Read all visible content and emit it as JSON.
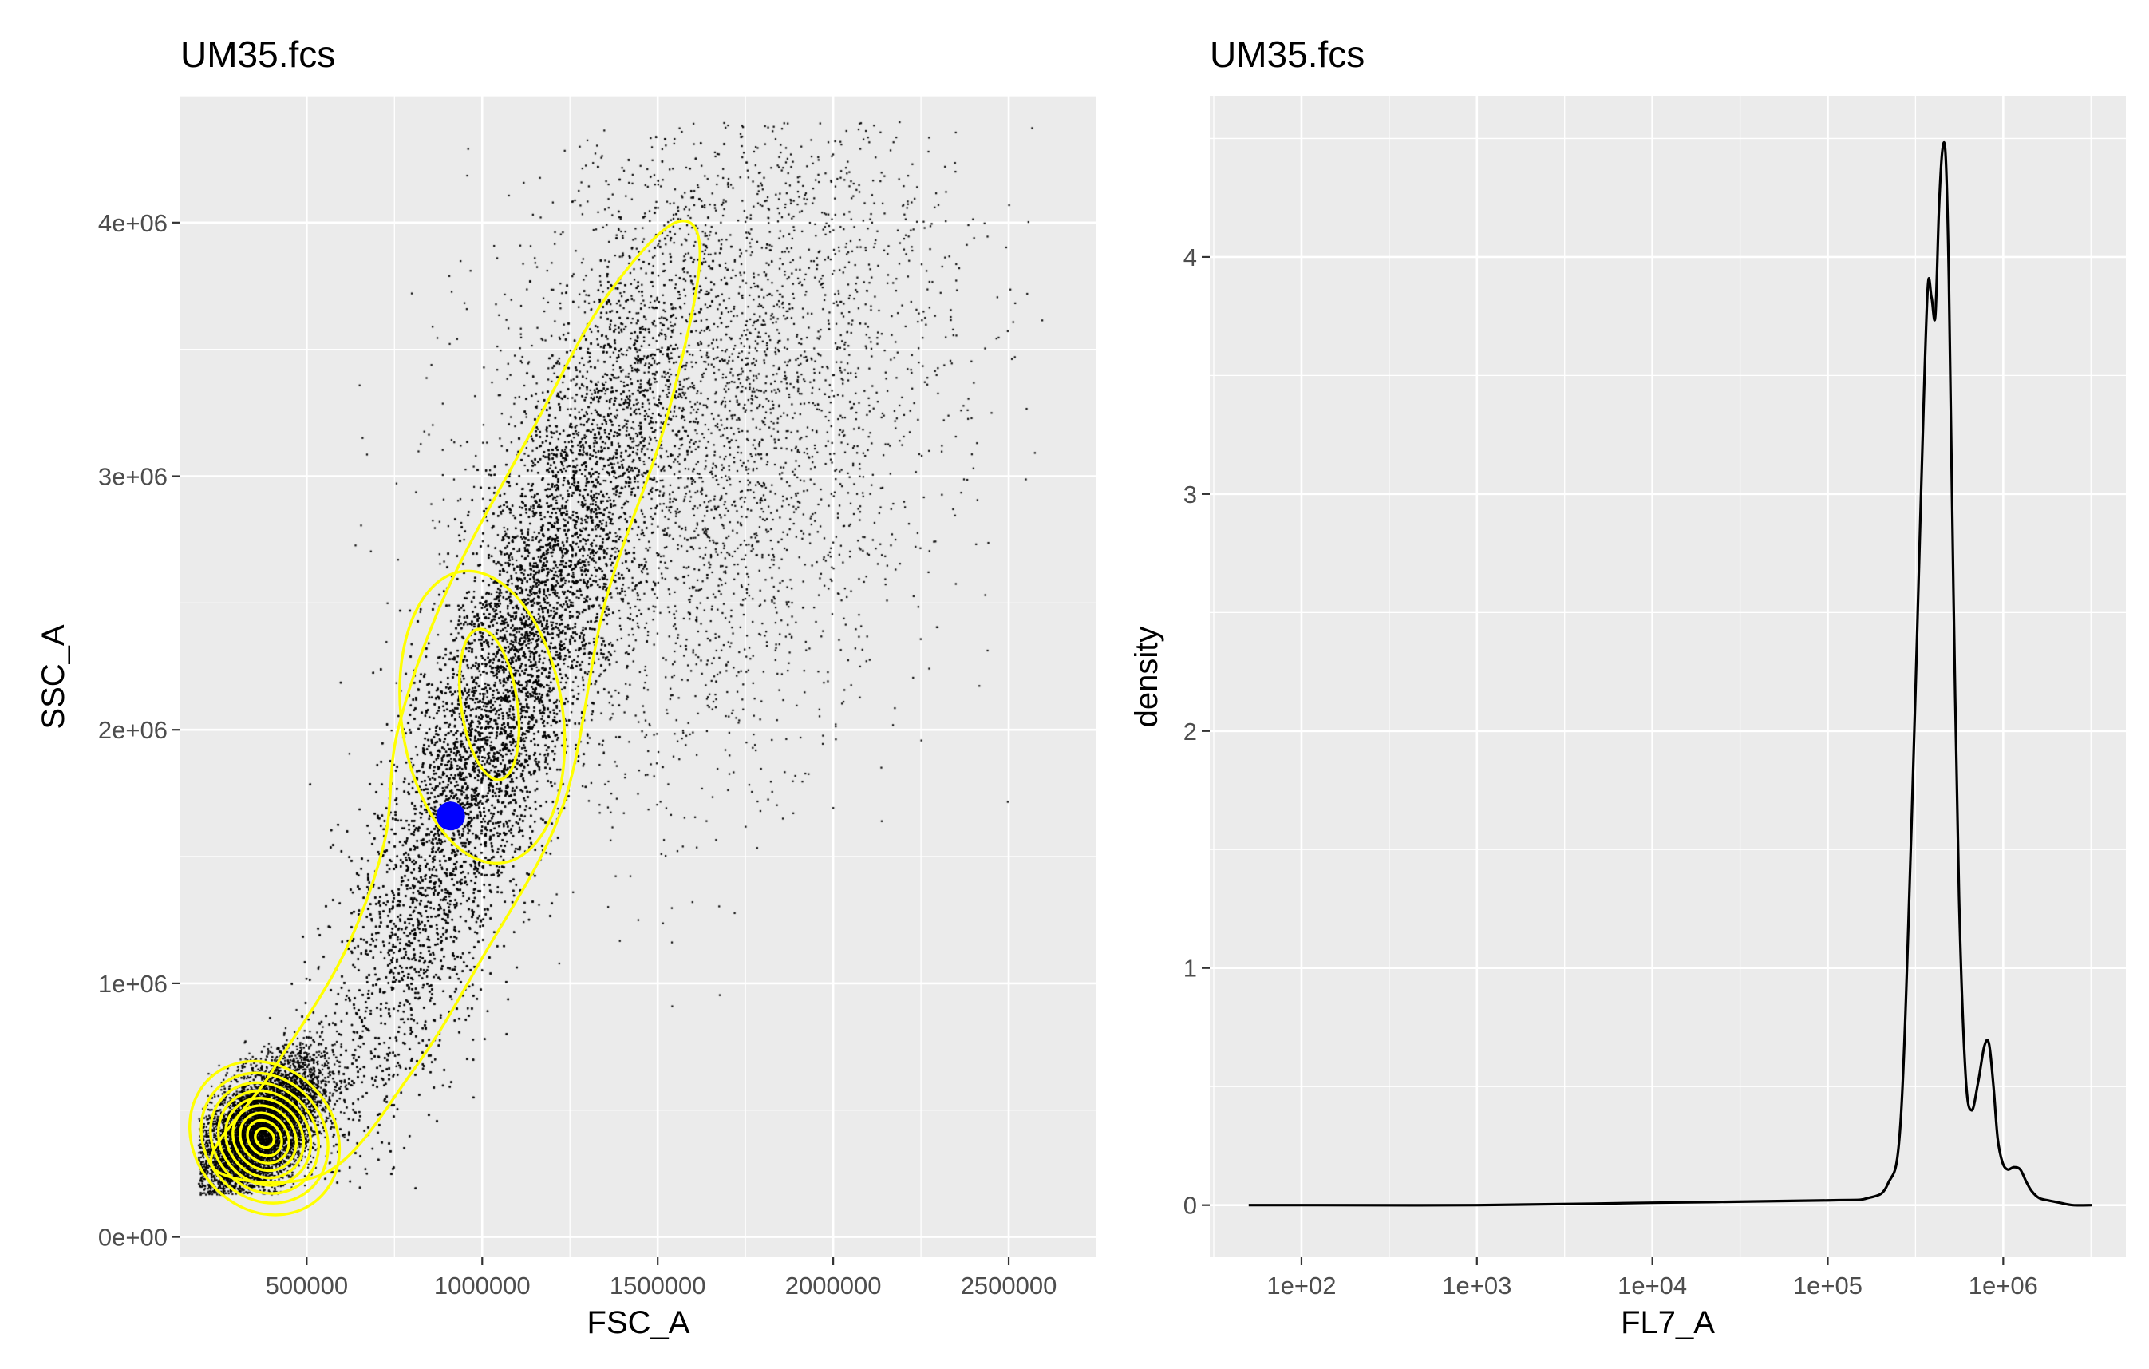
{
  "chart_data": [
    {
      "type": "scatter",
      "title": "UM35.fcs",
      "xlabel": "FSC_A",
      "ylabel": "SSC_A",
      "xlim": [
        140000,
        2750000
      ],
      "ylim": [
        -80000,
        4500000
      ],
      "x_ticks": [
        500000,
        1000000,
        1500000,
        2000000,
        2500000
      ],
      "x_tick_labels": [
        "500000",
        "1000000",
        "1500000",
        "2000000",
        "2500000"
      ],
      "y_ticks": [
        0,
        1000000,
        2000000,
        3000000,
        4000000
      ],
      "y_tick_labels": [
        "0e+00",
        "1e+06",
        "2e+06",
        "3e+06",
        "4e+06"
      ],
      "grid": true,
      "legend": "none",
      "point_color": "#000000",
      "contour_color": "#ffff00",
      "populations": [
        {
          "name": "",
          "n": 9000,
          "x_mean": 360000,
          "y_mean": 420000,
          "x_sd": 90000,
          "y_sd": 140000,
          "corr": 0.55
        },
        {
          "name": "",
          "n": 20000,
          "x_mean": 1050000,
          "y_mean": 2100000,
          "x_sd": 230000,
          "y_sd": 780000,
          "corr": 0.86
        },
        {
          "name": "",
          "n": 4000,
          "x_mean": 1650000,
          "y_mean": 3200000,
          "x_sd": 330000,
          "y_sd": 700000,
          "corr": 0.3
        }
      ],
      "contours": [
        {
          "center": [
            380000,
            390000
          ],
          "radii": [
            [
              25000,
              40000
            ],
            [
              45000,
              75000
            ],
            [
              65000,
              105000
            ],
            [
              85000,
              135000
            ],
            [
              105000,
              165000
            ],
            [
              125000,
              195000
            ],
            [
              145000,
              230000
            ],
            [
              170000,
              270000
            ],
            [
              200000,
              320000
            ]
          ],
          "angle": 40
        },
        {
          "center": [
            1020000,
            2100000
          ],
          "radii": [
            [
              80000,
              300000
            ]
          ],
          "angle": 8
        },
        {
          "center": [
            1000000,
            2050000
          ],
          "radii": [
            [
              230000,
              580000
            ]
          ],
          "angle": 8
        }
      ],
      "outer_contour": [
        [
          230000,
          280000
        ],
        [
          400000,
          650000
        ],
        [
          600000,
          1100000
        ],
        [
          720000,
          1550000
        ],
        [
          760000,
          2000000
        ],
        [
          900000,
          2550000
        ],
        [
          1150000,
          3200000
        ],
        [
          1350000,
          3700000
        ],
        [
          1550000,
          4000000
        ],
        [
          1620000,
          3850000
        ],
        [
          1520000,
          3200000
        ],
        [
          1350000,
          2500000
        ],
        [
          1230000,
          1700000
        ],
        [
          1000000,
          1100000
        ],
        [
          800000,
          650000
        ],
        [
          550000,
          250000
        ]
      ],
      "highlight_point": {
        "x": 910000,
        "y": 1660000,
        "color": "#0000ff"
      }
    },
    {
      "type": "line",
      "title": "UM35.fcs",
      "xlabel": "FL7_A",
      "ylabel": "density",
      "x_scale": "log10",
      "xlim": [
        30,
        5000000
      ],
      "ylim": [
        -0.22,
        4.68
      ],
      "x_ticks": [
        100,
        1000,
        10000,
        100000,
        1000000
      ],
      "x_tick_labels": [
        "1e+02",
        "1e+03",
        "1e+04",
        "1e+05",
        "1e+06"
      ],
      "y_ticks": [
        0,
        1,
        2,
        3,
        4
      ],
      "y_tick_labels": [
        "0",
        "1",
        "2",
        "3",
        "4"
      ],
      "grid": true,
      "legend": "none",
      "line_color": "#000000",
      "x": [
        50,
        100,
        1000,
        10000,
        100000,
        170000,
        220000,
        260000,
        300000,
        340000,
        370000,
        390000,
        410000,
        430000,
        450000,
        470000,
        490000,
        520000,
        560000,
        610000,
        660000,
        720000,
        780000,
        830000,
        880000,
        930000,
        990000,
        1060000,
        1150000,
        1250000,
        1350000,
        1450000,
        1600000,
        1800000,
        2100000,
        2500000,
        3200000
      ],
      "y": [
        0.0,
        0.0,
        0.0,
        0.01,
        0.02,
        0.03,
        0.09,
        0.35,
        1.6,
        3.0,
        3.85,
        3.83,
        3.75,
        4.2,
        4.45,
        4.42,
        3.9,
        2.6,
        1.3,
        0.55,
        0.4,
        0.52,
        0.67,
        0.68,
        0.5,
        0.28,
        0.18,
        0.15,
        0.16,
        0.15,
        0.1,
        0.06,
        0.03,
        0.02,
        0.01,
        0.0,
        0.0
      ]
    }
  ]
}
